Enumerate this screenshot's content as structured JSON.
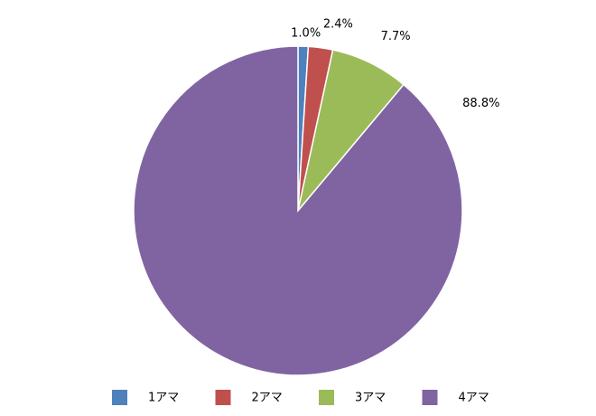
{
  "chart_data": {
    "type": "pie",
    "categories": [
      "1アマ",
      "2アマ",
      "3アマ",
      "4アマ"
    ],
    "values": [
      1.0,
      2.4,
      7.7,
      88.8
    ],
    "value_labels": [
      "1.0%",
      "2.4%",
      "7.7%",
      "88.8%"
    ],
    "colors": [
      "#4f81bd",
      "#c0504d",
      "#9bbb59",
      "#8064a2"
    ],
    "legend": "bottom"
  }
}
